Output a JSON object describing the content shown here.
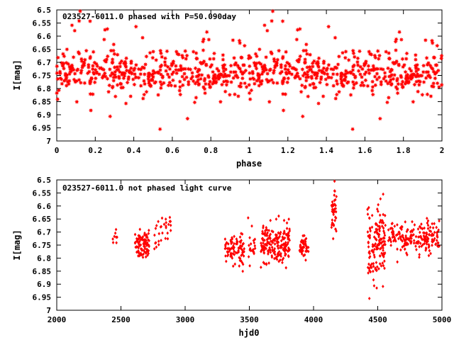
{
  "chart_data": [
    {
      "type": "scatter",
      "title": "023527-6011.0 phased with P=50.090day",
      "xlabel": "phase",
      "ylabel": "I[mag]",
      "xlim": [
        0,
        2
      ],
      "ylim": [
        6.5,
        7
      ],
      "y_inverted": true,
      "x_ticks": [
        "0",
        "0.2",
        "0.4",
        "0.6",
        "0.8",
        "1",
        "1.2",
        "1.4",
        "1.6",
        "1.8",
        "2"
      ],
      "y_ticks": [
        "6.5",
        "6.55",
        "6.6",
        "6.65",
        "6.7",
        "6.75",
        "6.8",
        "6.85",
        "6.9",
        "6.95",
        "7"
      ],
      "grid": false,
      "marker_color": "#ff0000",
      "marker": "star"
    },
    {
      "type": "scatter",
      "title": "023527-6011.0 not phased light curve",
      "xlabel": "hjd0",
      "ylabel": "I[mag]",
      "xlim": [
        2000,
        5000
      ],
      "ylim": [
        6.5,
        7
      ],
      "y_inverted": true,
      "x_ticks": [
        "2000",
        "2500",
        "3000",
        "3500",
        "4000",
        "4500",
        "5000"
      ],
      "y_ticks": [
        "6.5",
        "6.55",
        "6.6",
        "6.65",
        "6.7",
        "6.75",
        "6.8",
        "6.85",
        "6.9",
        "6.95",
        "7"
      ],
      "grid": false,
      "marker_color": "#ff0000",
      "marker": "diamond"
    }
  ]
}
